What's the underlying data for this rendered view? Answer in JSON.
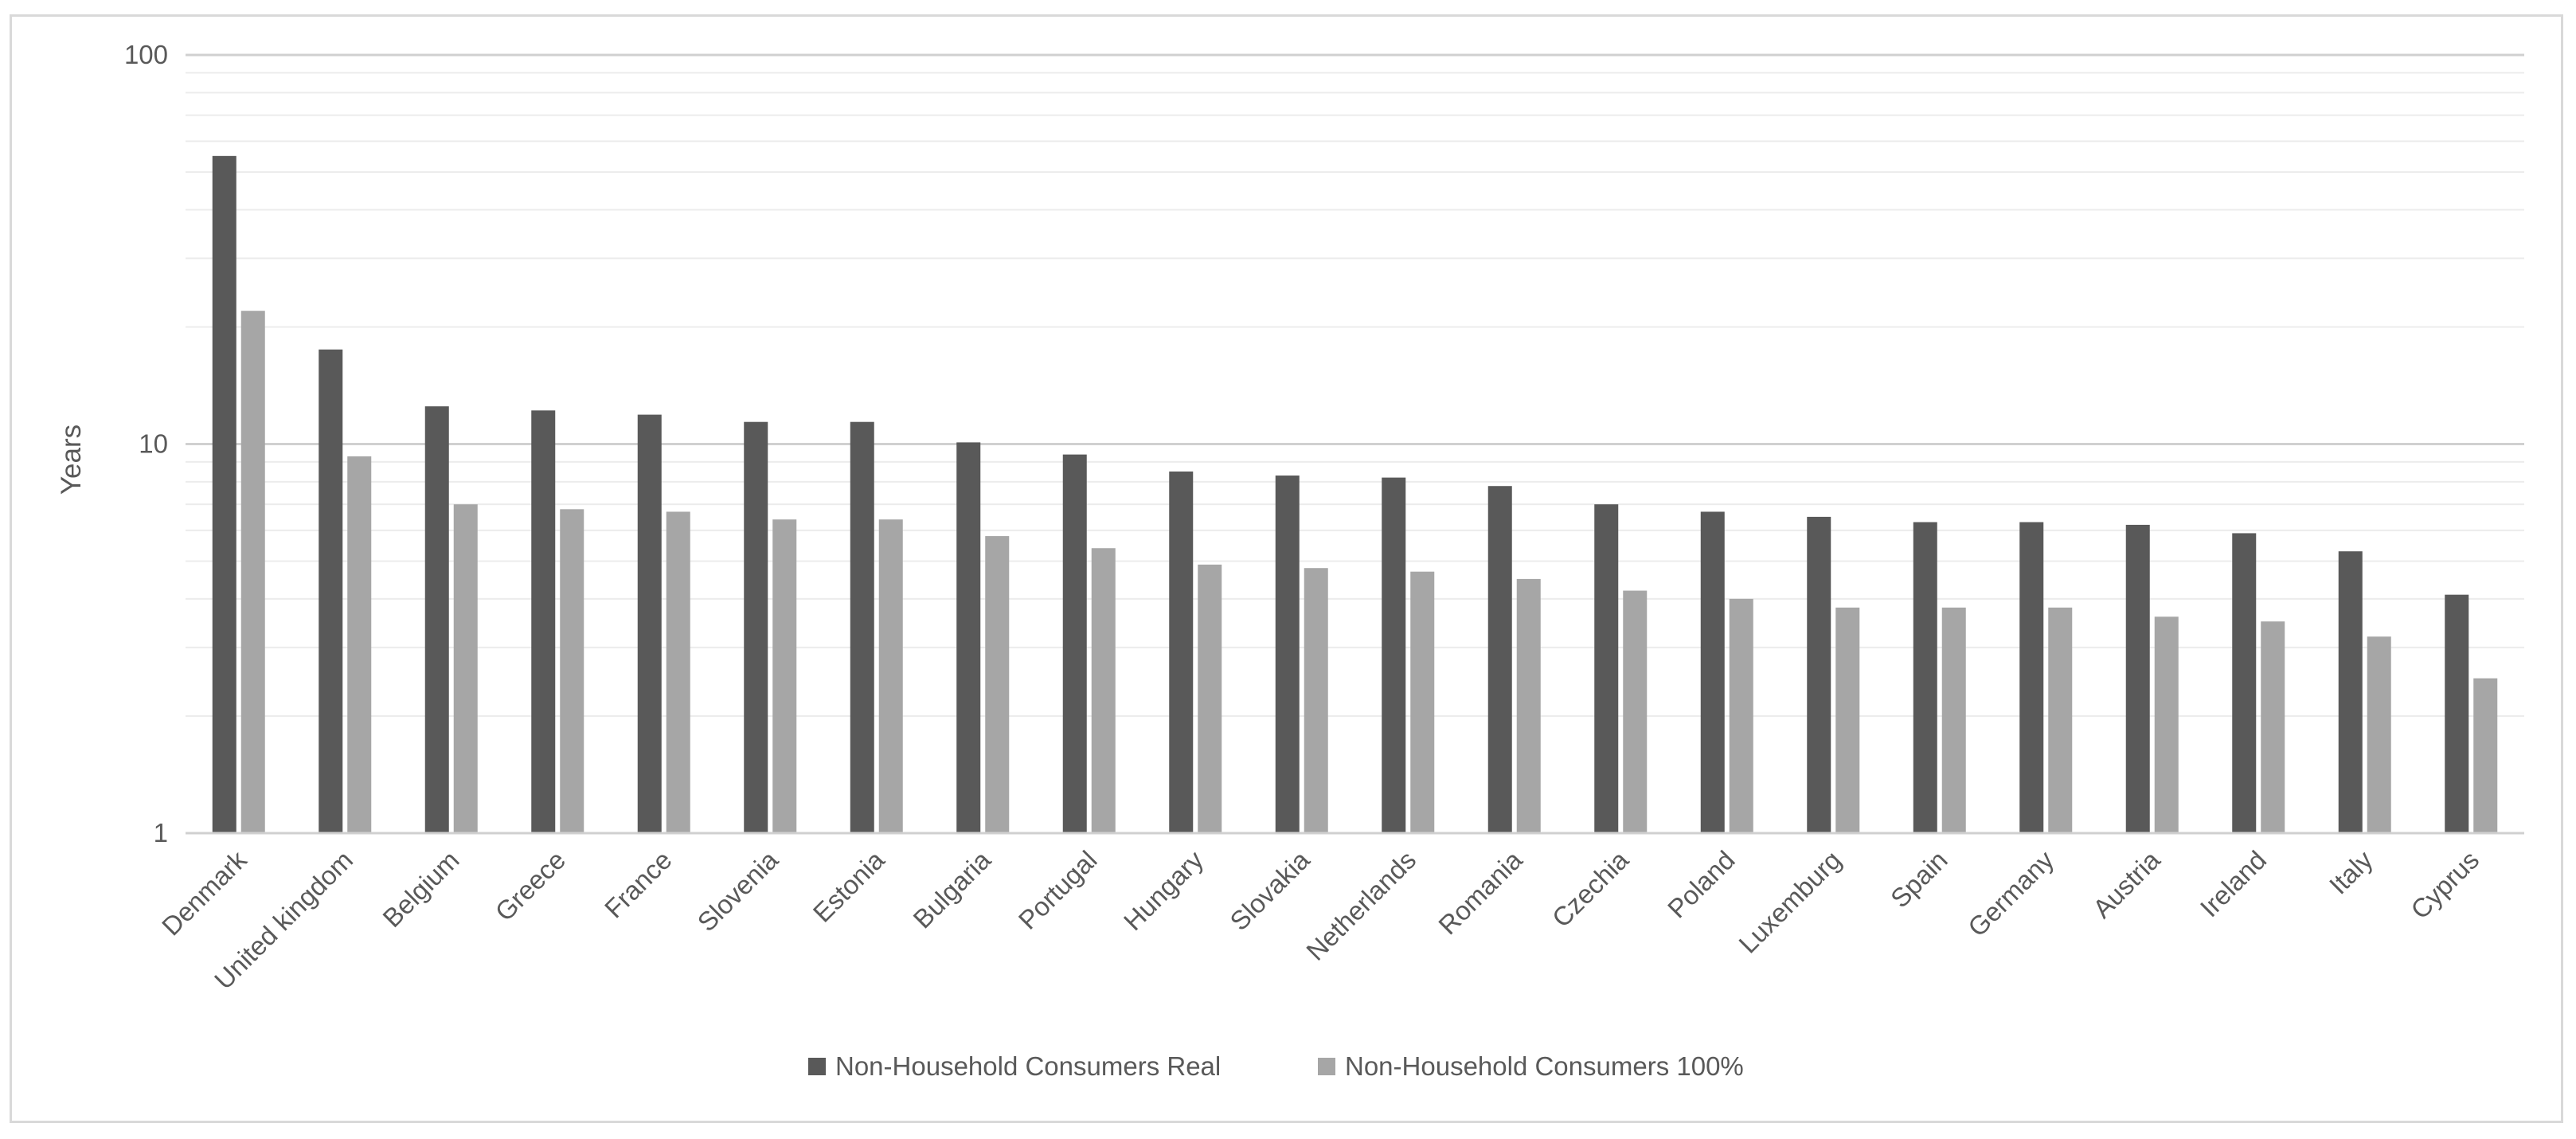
{
  "chart_data": {
    "type": "bar",
    "title": "",
    "xlabel": "",
    "ylabel": "Years",
    "yscale": "log",
    "ylim": [
      1,
      100
    ],
    "yticks": [
      "1",
      "10",
      "100"
    ],
    "grid": true,
    "legend_position": "bottom",
    "categories": [
      "Denmark",
      "United kingdom",
      "Belgium",
      "Greece",
      "France",
      "Slovenia",
      "Estonia",
      "Bulgaria",
      "Portugal",
      "Hungary",
      "Slovakia",
      "Netherlands",
      "Romania",
      "Czechia",
      "Poland",
      "Luxemburg",
      "Spain",
      "Germany",
      "Austria",
      "Ireland",
      "Italy",
      "Cyprus"
    ],
    "series": [
      {
        "name": "Non-Household Consumers Real",
        "color": "#595959",
        "values": [
          55,
          17.5,
          12.5,
          12.2,
          11.9,
          11.4,
          11.4,
          10.1,
          9.4,
          8.5,
          8.3,
          8.2,
          7.8,
          7.0,
          6.7,
          6.5,
          6.3,
          6.3,
          6.2,
          5.9,
          5.3,
          4.1
        ]
      },
      {
        "name": "Non-Household Consumers 100%",
        "color": "#a6a6a6",
        "values": [
          22,
          9.3,
          7.0,
          6.8,
          6.7,
          6.4,
          6.4,
          5.8,
          5.4,
          4.9,
          4.8,
          4.7,
          4.5,
          4.2,
          4.0,
          3.8,
          3.8,
          3.8,
          3.6,
          3.5,
          3.2,
          2.5
        ]
      }
    ]
  }
}
